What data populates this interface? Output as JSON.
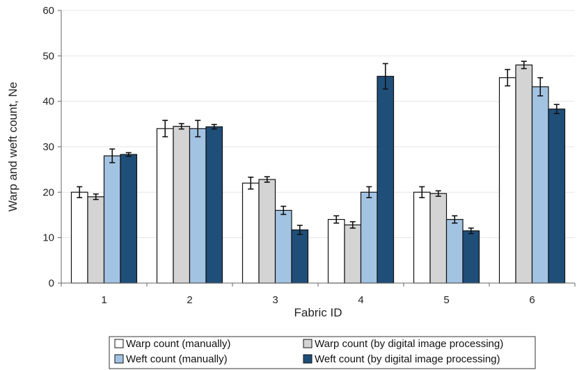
{
  "chart_data": {
    "type": "bar",
    "xlabel": "Fabric ID",
    "ylabel": "Warp and weft count, Ne",
    "ylim": [
      0,
      60
    ],
    "yticks": [
      0,
      10,
      20,
      30,
      40,
      50,
      60
    ],
    "categories": [
      "1",
      "2",
      "3",
      "4",
      "5",
      "6"
    ],
    "grid": true,
    "legend_position": "bottom",
    "series": [
      {
        "name": "Warp count (manually)",
        "color": "#ffffff",
        "values": [
          20,
          34,
          22,
          14,
          20,
          45.2
        ],
        "errors": [
          1.2,
          1.8,
          1.3,
          0.8,
          1.2,
          1.8
        ]
      },
      {
        "name": "Warp count  (by digital image processing)",
        "color": "#d4d4d4",
        "values": [
          19,
          34.5,
          22.8,
          12.8,
          19.7,
          48
        ],
        "errors": [
          0.6,
          0.6,
          0.6,
          0.7,
          0.6,
          0.8
        ]
      },
      {
        "name": "Weft count (manually)",
        "color": "#a3c3e3",
        "values": [
          28,
          34,
          16,
          20,
          14,
          43.2
        ],
        "errors": [
          1.5,
          1.8,
          0.9,
          1.2,
          0.8,
          2.0
        ]
      },
      {
        "name": "Weft count  (by digital image processing)",
        "color": "#1f4e79",
        "values": [
          28.3,
          34.4,
          11.7,
          45.5,
          11.5,
          38.3
        ],
        "errors": [
          0.4,
          0.5,
          1.0,
          2.8,
          0.6,
          1.0
        ]
      }
    ]
  }
}
